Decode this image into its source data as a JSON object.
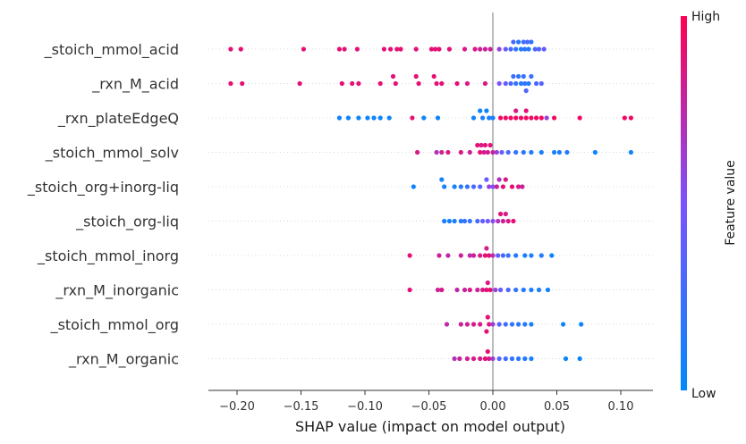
{
  "chart_data": {
    "type": "scatter",
    "subtype": "shap-beeswarm",
    "xlabel": "SHAP value (impact on model output)",
    "xlim": [
      -0.22,
      0.125
    ],
    "xticks": [
      "−0.20",
      "−0.15",
      "−0.10",
      "−0.05",
      "0.00",
      "0.05",
      "0.10"
    ],
    "xtick_values": [
      -0.2,
      -0.15,
      -0.1,
      -0.05,
      0.0,
      0.05,
      0.1
    ],
    "zero_line": 0.0,
    "colorbar": {
      "title": "Feature value",
      "high_label": "High",
      "low_label": "Low",
      "low_color": "#008afb",
      "mid_color": "#7c52ff",
      "high_color": "#ff0052"
    },
    "features": [
      {
        "name": "_stoich_mmol_acid",
        "points": [
          [
            -0.205,
            0.9
          ],
          [
            -0.197,
            0.9
          ],
          [
            -0.148,
            0.9
          ],
          [
            -0.12,
            0.9
          ],
          [
            -0.116,
            0.9
          ],
          [
            -0.106,
            0.9
          ],
          [
            -0.085,
            0.9
          ],
          [
            -0.08,
            0.9
          ],
          [
            -0.075,
            0.9
          ],
          [
            -0.072,
            0.9
          ],
          [
            -0.06,
            0.9
          ],
          [
            -0.048,
            0.9
          ],
          [
            -0.045,
            0.9
          ],
          [
            -0.042,
            0.9
          ],
          [
            -0.034,
            0.9
          ],
          [
            -0.022,
            0.85
          ],
          [
            -0.014,
            0.85
          ],
          [
            -0.01,
            0.8
          ],
          [
            -0.006,
            0.8
          ],
          [
            -0.002,
            0.8
          ],
          [
            0.005,
            0.6
          ],
          [
            0.01,
            0.4
          ],
          [
            0.014,
            0.3
          ],
          [
            0.018,
            0.2
          ],
          [
            0.02,
            0.15
          ],
          [
            0.022,
            0.1
          ],
          [
            0.025,
            0.2
          ],
          [
            0.028,
            0.15
          ],
          [
            0.03,
            0.2
          ],
          [
            0.033,
            0.3
          ],
          [
            0.036,
            0.35
          ],
          [
            0.04,
            0.4
          ],
          [
            0.016,
            0.3
          ],
          [
            0.024,
            0.25
          ],
          [
            0.027,
            0.3
          ]
        ]
      },
      {
        "name": "_rxn_M_acid",
        "points": [
          [
            -0.205,
            0.9
          ],
          [
            -0.196,
            0.9
          ],
          [
            -0.151,
            0.9
          ],
          [
            -0.118,
            0.9
          ],
          [
            -0.11,
            0.9
          ],
          [
            -0.105,
            0.9
          ],
          [
            -0.088,
            0.9
          ],
          [
            -0.078,
            0.9
          ],
          [
            -0.076,
            0.9
          ],
          [
            -0.06,
            0.9
          ],
          [
            -0.058,
            0.9
          ],
          [
            -0.046,
            0.9
          ],
          [
            -0.044,
            0.9
          ],
          [
            -0.04,
            0.9
          ],
          [
            -0.028,
            0.9
          ],
          [
            -0.02,
            0.85
          ],
          [
            -0.006,
            0.85
          ],
          [
            0.005,
            0.5
          ],
          [
            0.01,
            0.4
          ],
          [
            0.014,
            0.3
          ],
          [
            0.018,
            0.2
          ],
          [
            0.02,
            0.2
          ],
          [
            0.022,
            0.15
          ],
          [
            0.025,
            0.2
          ],
          [
            0.028,
            0.15
          ],
          [
            0.03,
            0.25
          ],
          [
            0.034,
            0.3
          ],
          [
            0.038,
            0.35
          ],
          [
            0.016,
            0.25
          ],
          [
            0.024,
            0.2
          ],
          [
            0.026,
            0.3
          ]
        ]
      },
      {
        "name": "_rxn_plateEdgeQ",
        "points": [
          [
            -0.12,
            0.05
          ],
          [
            -0.113,
            0.05
          ],
          [
            -0.105,
            0.05
          ],
          [
            -0.098,
            0.05
          ],
          [
            -0.093,
            0.05
          ],
          [
            -0.088,
            0.05
          ],
          [
            -0.081,
            0.05
          ],
          [
            -0.063,
            0.9
          ],
          [
            -0.054,
            0.05
          ],
          [
            -0.043,
            0.05
          ],
          [
            -0.015,
            0.05
          ],
          [
            -0.01,
            0.05
          ],
          [
            -0.008,
            0.1
          ],
          [
            -0.005,
            0.05
          ],
          [
            -0.003,
            0.1
          ],
          [
            0.0,
            0.1
          ],
          [
            0.006,
            0.95
          ],
          [
            0.01,
            0.95
          ],
          [
            0.014,
            0.95
          ],
          [
            0.018,
            0.95
          ],
          [
            0.022,
            0.95
          ],
          [
            0.026,
            0.95
          ],
          [
            0.03,
            0.95
          ],
          [
            0.034,
            0.95
          ],
          [
            0.038,
            0.95
          ],
          [
            0.042,
            0.6
          ],
          [
            0.048,
            0.95
          ],
          [
            0.068,
            0.95
          ],
          [
            0.103,
            0.95
          ],
          [
            0.108,
            0.95
          ],
          [
            0.018,
            0.85
          ],
          [
            0.026,
            0.9
          ]
        ]
      },
      {
        "name": "_stoich_mmol_solv",
        "points": [
          [
            -0.059,
            0.85
          ],
          [
            -0.044,
            0.7
          ],
          [
            -0.04,
            0.8
          ],
          [
            -0.035,
            0.85
          ],
          [
            -0.025,
            0.85
          ],
          [
            -0.018,
            0.8
          ],
          [
            -0.012,
            0.9
          ],
          [
            -0.009,
            0.85
          ],
          [
            -0.006,
            0.9
          ],
          [
            -0.004,
            0.85
          ],
          [
            -0.002,
            0.9
          ],
          [
            0.0,
            0.8
          ],
          [
            0.003,
            0.6
          ],
          [
            0.007,
            0.4
          ],
          [
            0.012,
            0.3
          ],
          [
            0.018,
            0.2
          ],
          [
            0.024,
            0.15
          ],
          [
            0.03,
            0.15
          ],
          [
            0.038,
            0.1
          ],
          [
            0.048,
            0.1
          ],
          [
            0.052,
            0.1
          ],
          [
            0.058,
            0.15
          ],
          [
            0.08,
            0.05
          ],
          [
            0.108,
            0.05
          ],
          [
            -0.01,
            0.9
          ],
          [
            -0.007,
            0.8
          ]
        ]
      },
      {
        "name": "_stoich_org+inorg-liq",
        "points": [
          [
            -0.062,
            0.05
          ],
          [
            -0.04,
            0.1
          ],
          [
            -0.038,
            0.1
          ],
          [
            -0.03,
            0.1
          ],
          [
            -0.025,
            0.15
          ],
          [
            -0.02,
            0.2
          ],
          [
            -0.015,
            0.3
          ],
          [
            -0.01,
            0.35
          ],
          [
            -0.005,
            0.4
          ],
          [
            0.0,
            0.5
          ],
          [
            0.005,
            0.7
          ],
          [
            0.01,
            0.85
          ],
          [
            0.015,
            0.9
          ],
          [
            0.02,
            0.85
          ],
          [
            0.023,
            0.8
          ],
          [
            0.008,
            0.9
          ],
          [
            -0.003,
            0.6
          ],
          [
            0.003,
            0.8
          ]
        ]
      },
      {
        "name": "_stoich_org-liq",
        "points": [
          [
            -0.038,
            0.1
          ],
          [
            -0.034,
            0.1
          ],
          [
            -0.03,
            0.1
          ],
          [
            -0.025,
            0.15
          ],
          [
            -0.022,
            0.2
          ],
          [
            -0.018,
            0.2
          ],
          [
            -0.012,
            0.3
          ],
          [
            -0.008,
            0.4
          ],
          [
            -0.004,
            0.45
          ],
          [
            0.0,
            0.55
          ],
          [
            0.004,
            0.7
          ],
          [
            0.008,
            0.8
          ],
          [
            0.012,
            0.85
          ],
          [
            0.016,
            0.9
          ],
          [
            0.006,
            0.9
          ],
          [
            0.01,
            0.85
          ]
        ]
      },
      {
        "name": "_stoich_mmol_inorg",
        "points": [
          [
            -0.065,
            0.9
          ],
          [
            -0.042,
            0.8
          ],
          [
            -0.035,
            0.75
          ],
          [
            -0.025,
            0.8
          ],
          [
            -0.018,
            0.75
          ],
          [
            -0.015,
            0.8
          ],
          [
            -0.01,
            0.85
          ],
          [
            -0.006,
            0.9
          ],
          [
            -0.003,
            0.9
          ],
          [
            0.0,
            0.7
          ],
          [
            0.004,
            0.4
          ],
          [
            0.008,
            0.3
          ],
          [
            0.012,
            0.2
          ],
          [
            0.018,
            0.15
          ],
          [
            0.025,
            0.1
          ],
          [
            0.03,
            0.1
          ],
          [
            0.038,
            0.15
          ],
          [
            0.046,
            0.05
          ],
          [
            -0.005,
            0.85
          ]
        ]
      },
      {
        "name": "_rxn_M_inorganic",
        "points": [
          [
            -0.065,
            0.9
          ],
          [
            -0.043,
            0.8
          ],
          [
            -0.04,
            0.85
          ],
          [
            -0.028,
            0.75
          ],
          [
            -0.022,
            0.8
          ],
          [
            -0.018,
            0.85
          ],
          [
            -0.012,
            0.8
          ],
          [
            -0.008,
            0.85
          ],
          [
            -0.005,
            0.9
          ],
          [
            -0.002,
            0.9
          ],
          [
            0.002,
            0.6
          ],
          [
            0.006,
            0.4
          ],
          [
            0.012,
            0.3
          ],
          [
            0.018,
            0.2
          ],
          [
            0.024,
            0.15
          ],
          [
            0.03,
            0.1
          ],
          [
            0.036,
            0.1
          ],
          [
            0.043,
            0.05
          ],
          [
            -0.004,
            0.85
          ]
        ]
      },
      {
        "name": "_stoich_mmol_org",
        "points": [
          [
            -0.036,
            0.75
          ],
          [
            -0.025,
            0.8
          ],
          [
            -0.02,
            0.8
          ],
          [
            -0.015,
            0.85
          ],
          [
            -0.01,
            0.85
          ],
          [
            -0.005,
            0.9
          ],
          [
            -0.003,
            0.85
          ],
          [
            0.0,
            0.6
          ],
          [
            0.005,
            0.35
          ],
          [
            0.01,
            0.25
          ],
          [
            0.015,
            0.2
          ],
          [
            0.02,
            0.15
          ],
          [
            0.025,
            0.15
          ],
          [
            0.03,
            0.1
          ],
          [
            0.055,
            0.05
          ],
          [
            0.069,
            0.05
          ],
          [
            -0.004,
            0.9
          ]
        ]
      },
      {
        "name": "_rxn_M_organic",
        "points": [
          [
            -0.03,
            0.7
          ],
          [
            -0.026,
            0.8
          ],
          [
            -0.02,
            0.8
          ],
          [
            -0.015,
            0.85
          ],
          [
            -0.01,
            0.85
          ],
          [
            -0.006,
            0.9
          ],
          [
            -0.003,
            0.85
          ],
          [
            0.0,
            0.6
          ],
          [
            0.005,
            0.35
          ],
          [
            0.01,
            0.25
          ],
          [
            0.015,
            0.2
          ],
          [
            0.02,
            0.15
          ],
          [
            0.025,
            0.15
          ],
          [
            0.03,
            0.1
          ],
          [
            0.057,
            0.05
          ],
          [
            0.068,
            0.05
          ],
          [
            -0.004,
            0.9
          ]
        ]
      }
    ]
  }
}
